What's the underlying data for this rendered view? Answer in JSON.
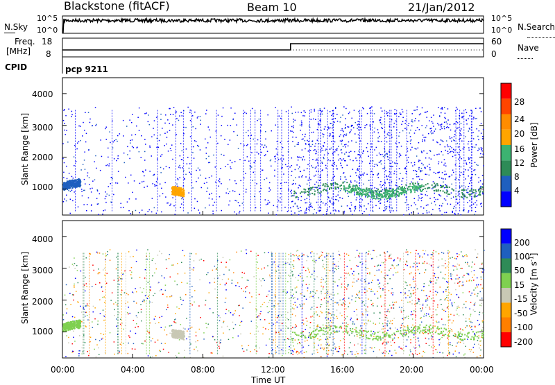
{
  "header": {
    "site": "Blackstone (fitACF)",
    "beam": "Beam 10",
    "date": "21/Jan/2012"
  },
  "strip_panels": {
    "nsky_label": "N.Sky",
    "nsky_ticks": [
      "10^5",
      "10^0"
    ],
    "nsearch_label": "N.Search",
    "nsearch_ticks": [
      "10^5",
      "10^0"
    ],
    "freq_label": "Freq.",
    "freq_unit": "[MHz]",
    "freq_ticks": [
      "18",
      "8"
    ],
    "nave_label": "Nave",
    "nave_ticks": [
      "60",
      "0"
    ],
    "cpid_label": "CPID",
    "cpid_value": "pcp 9211"
  },
  "colors": {
    "power_scale": [
      "#0000ff",
      "#1f5fbf",
      "#2e8b57",
      "#3cb371",
      "#ffa500",
      "#ff8c00",
      "#ff4500",
      "#ff0000"
    ],
    "velocity_scale": [
      "#0000ff",
      "#1f5fbf",
      "#2e8b57",
      "#7fd050",
      "#c8c8b4",
      "#ffa500",
      "#ff7f00",
      "#ff0000"
    ],
    "background": "#ffffff"
  },
  "chart_data": [
    {
      "type": "heatmap",
      "panel": "power",
      "ylabel": "Slant Range [km]",
      "yticks": [
        "1000",
        "2000",
        "3000",
        "4000"
      ],
      "ylim": [
        180,
        4500
      ],
      "xlim": [
        "00:00",
        "24:00"
      ],
      "colorbar_label": "Power [dB]",
      "colorbar_ticks": [
        "4",
        "8",
        "12",
        "16",
        "20",
        "24",
        "28"
      ],
      "colorbar_range": [
        0,
        30
      ],
      "features": [
        {
          "time_start": 0.0,
          "time_end": 1.0,
          "range": 1100,
          "value": 6
        },
        {
          "time_start": 6.2,
          "time_end": 6.9,
          "range": 850,
          "value": 16
        },
        {
          "time_start": 13.0,
          "time_end": 24.0,
          "range": 1000,
          "value": 8
        },
        {
          "time_start": 16.0,
          "time_end": 20.5,
          "range": 950,
          "value": 12
        }
      ]
    },
    {
      "type": "heatmap",
      "panel": "velocity",
      "ylabel": "Slant Range [km]",
      "yticks": [
        "1000",
        "2000",
        "3000",
        "4000"
      ],
      "ylim": [
        180,
        4500
      ],
      "xlim": [
        "00:00",
        "24:00"
      ],
      "colorbar_label": "Velocity [m s^-1]",
      "colorbar_ticks": [
        "200",
        "100",
        "50",
        "15",
        "-15",
        "-50",
        "-100",
        "-200"
      ],
      "colorbar_range": [
        -250,
        250
      ],
      "features": [
        {
          "time_start": 0.0,
          "time_end": 1.0,
          "range": 1150,
          "value": 0
        },
        {
          "time_start": 6.2,
          "time_end": 6.9,
          "range": 850,
          "value": -60
        },
        {
          "time_start": 13.0,
          "time_end": 24.0,
          "range": 1000,
          "value": 0
        }
      ]
    }
  ],
  "xaxis": {
    "ticks": [
      "00:00",
      "04:00",
      "08:00",
      "12:00",
      "16:00",
      "20:00",
      "00:00"
    ],
    "label": "Time UT"
  }
}
